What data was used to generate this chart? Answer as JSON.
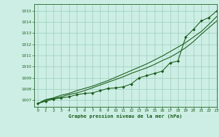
{
  "title": "Graphe pression niveau de la mer (hPa)",
  "bg_color": "#cceee4",
  "grid_color": "#99ccbb",
  "line_color": "#1a5c1a",
  "xlim": [
    -0.5,
    23
  ],
  "ylim": [
    1006.4,
    1015.6
  ],
  "yticks": [
    1007,
    1008,
    1009,
    1010,
    1011,
    1012,
    1013,
    1014,
    1015
  ],
  "xticks": [
    0,
    1,
    2,
    3,
    4,
    5,
    6,
    7,
    8,
    9,
    10,
    11,
    12,
    13,
    14,
    15,
    16,
    17,
    18,
    19,
    20,
    21,
    22,
    23
  ],
  "series1_x": [
    0,
    1,
    2,
    3,
    4,
    5,
    6,
    7,
    8,
    9,
    10,
    11,
    12,
    13,
    14,
    15,
    16,
    17,
    18,
    19,
    20,
    21,
    22,
    23
  ],
  "series1_y": [
    1006.7,
    1006.9,
    1007.1,
    1007.2,
    1007.3,
    1007.5,
    1007.6,
    1007.65,
    1007.85,
    1008.05,
    1008.1,
    1008.2,
    1008.45,
    1009.0,
    1009.2,
    1009.4,
    1009.6,
    1010.35,
    1010.5,
    1012.65,
    1013.35,
    1014.1,
    1014.4,
    1015.0
  ],
  "series2_x": [
    0,
    1,
    2,
    3,
    4,
    5,
    6,
    7,
    8,
    9,
    10,
    11,
    12,
    13,
    14,
    15,
    16,
    17,
    18,
    19,
    20,
    21,
    22,
    23
  ],
  "series2_y": [
    1006.7,
    1007.0,
    1007.15,
    1007.3,
    1007.5,
    1007.65,
    1007.85,
    1008.1,
    1008.35,
    1008.6,
    1008.85,
    1009.1,
    1009.4,
    1009.65,
    1009.9,
    1010.2,
    1010.55,
    1010.85,
    1011.25,
    1011.7,
    1012.25,
    1012.9,
    1013.5,
    1014.1
  ],
  "series3_x": [
    0,
    1,
    2,
    3,
    4,
    5,
    6,
    7,
    8,
    9,
    10,
    11,
    12,
    13,
    14,
    15,
    16,
    17,
    18,
    19,
    20,
    21,
    22,
    23
  ],
  "series3_y": [
    1006.7,
    1007.05,
    1007.2,
    1007.45,
    1007.6,
    1007.85,
    1008.05,
    1008.25,
    1008.5,
    1008.75,
    1009.05,
    1009.35,
    1009.65,
    1009.95,
    1010.25,
    1010.6,
    1010.95,
    1011.35,
    1011.75,
    1012.15,
    1012.65,
    1013.15,
    1013.8,
    1014.5
  ]
}
